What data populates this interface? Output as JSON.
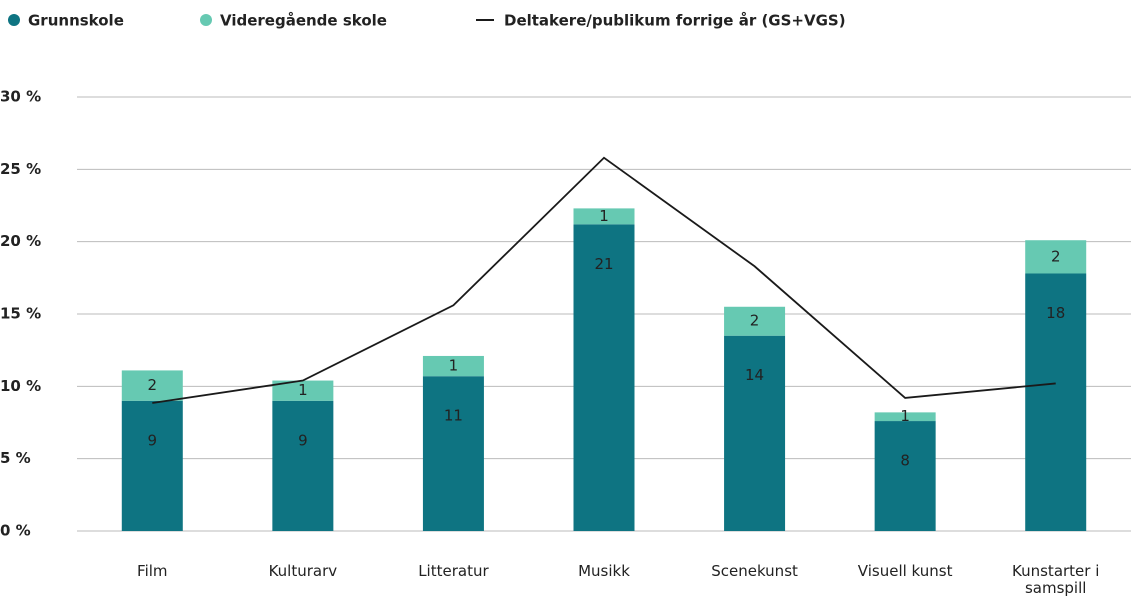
{
  "chart_data": {
    "type": "bar",
    "stacked": true,
    "categories": [
      "Film",
      "Kulturarv",
      "Litteratur",
      "Musikk",
      "Scenekunst",
      "Visuell kunst",
      "Kunstarter i samspill"
    ],
    "series": [
      {
        "name": "Grunnskole",
        "color": "#0e7482",
        "values": [
          9.0,
          9.0,
          10.7,
          21.2,
          13.5,
          7.6,
          17.8
        ],
        "value_labels": [
          "9",
          "9",
          "11",
          "21",
          "14",
          "8",
          "18"
        ]
      },
      {
        "name": "Videregående skole",
        "color": "#66c9b2",
        "values": [
          2.1,
          1.4,
          1.4,
          1.1,
          2.0,
          0.6,
          2.3
        ],
        "value_labels": [
          "2",
          "1",
          "1",
          "1",
          "2",
          "1",
          "2"
        ]
      },
      {
        "name": "Deltakere/publikum forrige år (GS+VGS)",
        "type": "line",
        "color": "#1a1a1a",
        "values": [
          8.85,
          10.4,
          15.6,
          25.8,
          18.3,
          9.2,
          10.2
        ]
      }
    ],
    "ylim": [
      0,
      30
    ],
    "yticks": [
      {
        "value": 0,
        "label": "0 %"
      },
      {
        "value": 5,
        "label": "5 %"
      },
      {
        "value": 10,
        "label": "10 %"
      },
      {
        "value": 15,
        "label": "15 %"
      },
      {
        "value": 20,
        "label": "20 %"
      },
      {
        "value": 25,
        "label": "25 %"
      },
      {
        "value": 30,
        "label": "30 %"
      }
    ],
    "grid": true,
    "legend": "top-left"
  }
}
